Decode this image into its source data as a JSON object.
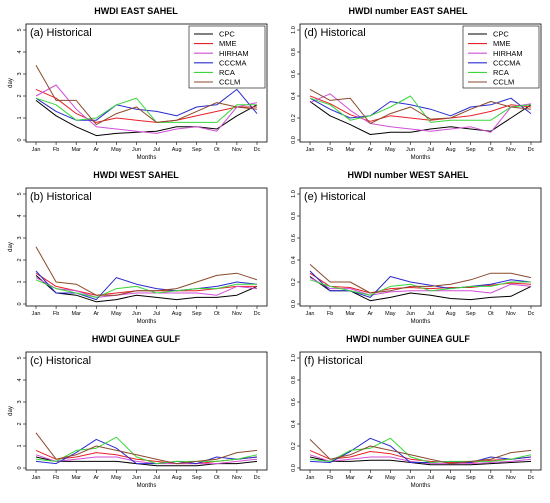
{
  "months": [
    "Jan",
    "Feb",
    "Mar",
    "Apr",
    "May",
    "Jun",
    "Jul",
    "Aug",
    "Sep",
    "Oct",
    "Nov",
    "Dec"
  ],
  "tick_labels": [
    "Jan",
    "Fb",
    "Mar",
    "Ar",
    "May",
    "Jun",
    "Jul",
    "Aug",
    "Sep",
    "Ot",
    "Nov",
    "Dc"
  ],
  "series_colors": {
    "CPC": "#000000",
    "MME": "#e8202a",
    "HIRHAM": "#d24fd6",
    "CCCMA": "#2b2bcf",
    "RCA": "#3ad63a",
    "CCLM": "#8b4a2b"
  },
  "chart_data": [
    {
      "type": "line",
      "title": "HWDI EAST SAHEL",
      "panel_label": "(a) Historical",
      "xlabel": "Months",
      "ylabel": "day",
      "ylim": [
        0,
        5
      ],
      "yticks": [
        0,
        1,
        2,
        3,
        4,
        5
      ],
      "legend": "top-right",
      "categories": [
        "Jan",
        "Feb",
        "Mar",
        "Apr",
        "May",
        "Jun",
        "Jul",
        "Aug",
        "Sep",
        "Oct",
        "Nov",
        "Dec"
      ],
      "series": [
        {
          "name": "CPC",
          "values": [
            1.8,
            1.1,
            0.6,
            0.2,
            0.3,
            0.35,
            0.4,
            0.6,
            0.6,
            0.5,
            1.1,
            1.6
          ]
        },
        {
          "name": "MME",
          "values": [
            2.3,
            1.9,
            1.2,
            0.8,
            1.0,
            0.9,
            0.8,
            0.9,
            1.1,
            1.3,
            1.5,
            1.5
          ]
        },
        {
          "name": "HIRHAM",
          "values": [
            2.0,
            2.5,
            1.4,
            0.6,
            0.5,
            0.4,
            0.3,
            0.5,
            0.6,
            0.4,
            1.5,
            1.7
          ]
        },
        {
          "name": "CCCMA",
          "values": [
            1.9,
            1.3,
            0.9,
            0.9,
            1.6,
            1.4,
            1.3,
            1.1,
            1.5,
            1.6,
            2.3,
            1.2
          ]
        },
        {
          "name": "RCA",
          "values": [
            1.9,
            1.6,
            0.9,
            1.0,
            1.6,
            1.9,
            0.8,
            0.8,
            0.8,
            0.8,
            1.6,
            1.6
          ]
        },
        {
          "name": "CCLM",
          "values": [
            3.4,
            1.8,
            1.8,
            0.7,
            1.2,
            1.5,
            0.8,
            0.9,
            1.3,
            1.7,
            1.5,
            1.4
          ]
        }
      ]
    },
    {
      "type": "line",
      "title": "HWDI number EAST SAHEL",
      "panel_label": "(d) Historical",
      "xlabel": "Months",
      "ylabel": "",
      "ylim": [
        0,
        1.0
      ],
      "yticks": [
        0.0,
        0.2,
        0.4,
        0.6,
        0.8,
        1.0
      ],
      "legend": "top-right",
      "categories": [
        "Jan",
        "Feb",
        "Mar",
        "Apr",
        "May",
        "Jun",
        "Jul",
        "Aug",
        "Sep",
        "Oct",
        "Nov",
        "Dec"
      ],
      "series": [
        {
          "name": "CPC",
          "values": [
            0.35,
            0.22,
            0.14,
            0.05,
            0.07,
            0.07,
            0.1,
            0.12,
            0.1,
            0.08,
            0.2,
            0.32
          ]
        },
        {
          "name": "MME",
          "values": [
            0.4,
            0.33,
            0.23,
            0.17,
            0.22,
            0.2,
            0.18,
            0.2,
            0.22,
            0.26,
            0.32,
            0.3
          ]
        },
        {
          "name": "HIRHAM",
          "values": [
            0.34,
            0.42,
            0.27,
            0.15,
            0.12,
            0.1,
            0.08,
            0.1,
            0.12,
            0.07,
            0.3,
            0.33
          ]
        },
        {
          "name": "CCCMA",
          "values": [
            0.38,
            0.28,
            0.2,
            0.22,
            0.35,
            0.32,
            0.28,
            0.22,
            0.3,
            0.32,
            0.38,
            0.24
          ]
        },
        {
          "name": "RCA",
          "values": [
            0.38,
            0.32,
            0.18,
            0.22,
            0.3,
            0.4,
            0.16,
            0.18,
            0.18,
            0.18,
            0.3,
            0.32
          ]
        },
        {
          "name": "CCLM",
          "values": [
            0.46,
            0.36,
            0.38,
            0.15,
            0.24,
            0.3,
            0.19,
            0.2,
            0.28,
            0.35,
            0.3,
            0.28
          ]
        }
      ]
    },
    {
      "type": "line",
      "title": "HWDI WEST SAHEL",
      "panel_label": "(b) Historical",
      "xlabel": "Months",
      "ylabel": "day",
      "ylim": [
        0,
        5
      ],
      "yticks": [
        0,
        1,
        2,
        3,
        4,
        5
      ],
      "legend": "none",
      "categories": [
        "Jan",
        "Feb",
        "Mar",
        "Apr",
        "May",
        "Jun",
        "Jul",
        "Aug",
        "Sep",
        "Oct",
        "Nov",
        "Dec"
      ],
      "series": [
        {
          "name": "CPC",
          "values": [
            1.3,
            0.5,
            0.4,
            0.1,
            0.2,
            0.4,
            0.3,
            0.2,
            0.3,
            0.3,
            0.4,
            0.8
          ]
        },
        {
          "name": "MME",
          "values": [
            1.4,
            0.8,
            0.6,
            0.4,
            0.5,
            0.6,
            0.6,
            0.6,
            0.6,
            0.7,
            0.8,
            0.8
          ]
        },
        {
          "name": "HIRHAM",
          "values": [
            1.2,
            0.7,
            0.6,
            0.3,
            0.4,
            0.5,
            0.5,
            0.5,
            0.5,
            0.4,
            0.8,
            0.7
          ]
        },
        {
          "name": "CCCMA",
          "values": [
            1.5,
            0.5,
            0.5,
            0.2,
            1.2,
            0.9,
            0.7,
            0.6,
            0.7,
            0.8,
            1.0,
            0.9
          ]
        },
        {
          "name": "RCA",
          "values": [
            1.1,
            0.7,
            0.5,
            0.3,
            0.7,
            0.8,
            0.5,
            0.6,
            0.7,
            0.7,
            0.9,
            0.9
          ]
        },
        {
          "name": "CCLM",
          "values": [
            2.6,
            1.0,
            0.9,
            0.4,
            0.4,
            0.6,
            0.6,
            0.7,
            1.0,
            1.3,
            1.4,
            1.1
          ]
        }
      ]
    },
    {
      "type": "line",
      "title": "HWDI number WEST SAHEL",
      "panel_label": "(e) Historical",
      "xlabel": "Months",
      "ylabel": "",
      "ylim": [
        0,
        1.0
      ],
      "yticks": [
        0.0,
        0.2,
        0.4,
        0.6,
        0.8,
        1.0
      ],
      "legend": "none",
      "categories": [
        "Jan",
        "Feb",
        "Mar",
        "Apr",
        "May",
        "Jun",
        "Jul",
        "Aug",
        "Sep",
        "Oct",
        "Nov",
        "Dec"
      ],
      "series": [
        {
          "name": "CPC",
          "values": [
            0.25,
            0.12,
            0.12,
            0.03,
            0.06,
            0.1,
            0.08,
            0.05,
            0.04,
            0.06,
            0.07,
            0.16
          ]
        },
        {
          "name": "MME",
          "values": [
            0.28,
            0.16,
            0.15,
            0.1,
            0.14,
            0.15,
            0.14,
            0.15,
            0.15,
            0.17,
            0.19,
            0.18
          ]
        },
        {
          "name": "HIRHAM",
          "values": [
            0.24,
            0.14,
            0.14,
            0.08,
            0.11,
            0.12,
            0.12,
            0.12,
            0.12,
            0.1,
            0.18,
            0.16
          ]
        },
        {
          "name": "CCCMA",
          "values": [
            0.3,
            0.12,
            0.12,
            0.06,
            0.25,
            0.2,
            0.17,
            0.14,
            0.16,
            0.18,
            0.22,
            0.2
          ]
        },
        {
          "name": "RCA",
          "values": [
            0.22,
            0.16,
            0.12,
            0.08,
            0.16,
            0.18,
            0.12,
            0.14,
            0.16,
            0.16,
            0.2,
            0.2
          ]
        },
        {
          "name": "CCLM",
          "values": [
            0.36,
            0.2,
            0.2,
            0.1,
            0.12,
            0.16,
            0.16,
            0.18,
            0.22,
            0.28,
            0.28,
            0.24
          ]
        }
      ]
    },
    {
      "type": "line",
      "title": "HWDI GUINEA GULF",
      "panel_label": "(c) Historical",
      "xlabel": "Months",
      "ylabel": "day",
      "ylim": [
        0,
        5
      ],
      "yticks": [
        0,
        1,
        2,
        3,
        4,
        5
      ],
      "legend": "none",
      "categories": [
        "Jan",
        "Feb",
        "Mar",
        "Apr",
        "May",
        "Jun",
        "Jul",
        "Aug",
        "Sep",
        "Oct",
        "Nov",
        "Dec"
      ],
      "series": [
        {
          "name": "CPC",
          "values": [
            0.5,
            0.3,
            0.3,
            0.3,
            0.3,
            0.2,
            0.1,
            0.1,
            0.1,
            0.2,
            0.2,
            0.3
          ]
        },
        {
          "name": "MME",
          "values": [
            0.8,
            0.4,
            0.5,
            0.7,
            0.6,
            0.4,
            0.3,
            0.2,
            0.2,
            0.3,
            0.4,
            0.5
          ]
        },
        {
          "name": "HIRHAM",
          "values": [
            0.6,
            0.3,
            0.4,
            0.5,
            0.5,
            0.3,
            0.2,
            0.2,
            0.2,
            0.2,
            0.3,
            0.4
          ]
        },
        {
          "name": "CCCMA",
          "values": [
            0.3,
            0.2,
            0.7,
            1.3,
            0.9,
            0.2,
            0.2,
            0.3,
            0.2,
            0.5,
            0.4,
            0.5
          ]
        },
        {
          "name": "RCA",
          "values": [
            0.4,
            0.3,
            0.8,
            0.9,
            1.4,
            0.5,
            0.2,
            0.3,
            0.3,
            0.3,
            0.4,
            0.6
          ]
        },
        {
          "name": "CCLM",
          "values": [
            1.6,
            0.4,
            0.6,
            1.0,
            0.8,
            0.6,
            0.4,
            0.2,
            0.3,
            0.4,
            0.7,
            0.8
          ]
        }
      ]
    },
    {
      "type": "line",
      "title": "HWDI number GUINEA GULF",
      "panel_label": "(f) Historical",
      "xlabel": "Months",
      "ylabel": "",
      "ylim": [
        0,
        1.0
      ],
      "yticks": [
        0.0,
        0.2,
        0.4,
        0.6,
        0.8,
        1.0
      ],
      "legend": "none",
      "categories": [
        "Jan",
        "Feb",
        "Mar",
        "Apr",
        "May",
        "Jun",
        "Jul",
        "Aug",
        "Sep",
        "Oct",
        "Nov",
        "Dec"
      ],
      "series": [
        {
          "name": "CPC",
          "values": [
            0.1,
            0.06,
            0.06,
            0.07,
            0.07,
            0.05,
            0.03,
            0.03,
            0.03,
            0.04,
            0.05,
            0.06
          ]
        },
        {
          "name": "MME",
          "values": [
            0.16,
            0.08,
            0.1,
            0.15,
            0.13,
            0.08,
            0.06,
            0.05,
            0.05,
            0.07,
            0.08,
            0.1
          ]
        },
        {
          "name": "HIRHAM",
          "values": [
            0.12,
            0.06,
            0.08,
            0.1,
            0.1,
            0.06,
            0.04,
            0.04,
            0.04,
            0.05,
            0.06,
            0.08
          ]
        },
        {
          "name": "CCCMA",
          "values": [
            0.06,
            0.05,
            0.15,
            0.27,
            0.2,
            0.05,
            0.05,
            0.06,
            0.05,
            0.1,
            0.08,
            0.1
          ]
        },
        {
          "name": "RCA",
          "values": [
            0.08,
            0.06,
            0.16,
            0.18,
            0.27,
            0.1,
            0.05,
            0.06,
            0.06,
            0.06,
            0.08,
            0.12
          ]
        },
        {
          "name": "CCLM",
          "values": [
            0.26,
            0.08,
            0.12,
            0.2,
            0.16,
            0.12,
            0.08,
            0.04,
            0.06,
            0.08,
            0.14,
            0.16
          ]
        }
      ]
    }
  ]
}
